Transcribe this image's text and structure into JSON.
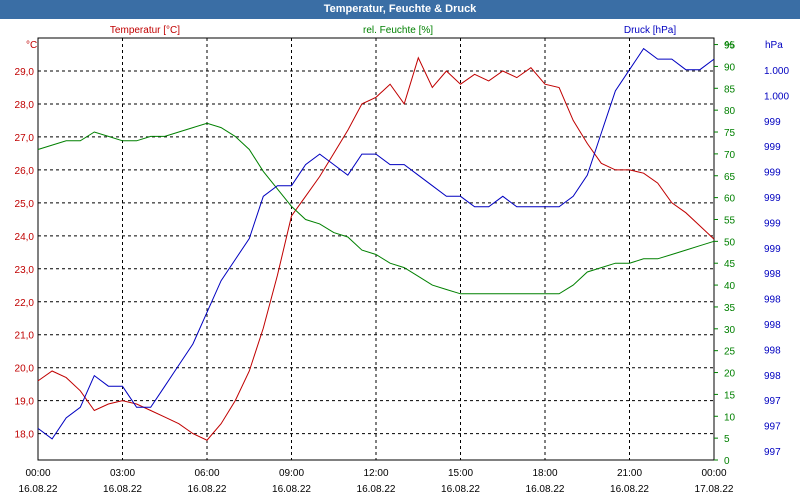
{
  "window": {
    "title": "Temperatur, Feuchte & Druck"
  },
  "colors": {
    "temperature": "#c00000",
    "humidity": "#008000",
    "pressure": "#0000c0",
    "grid": "#000000",
    "titlebar": "#3a6ea5"
  },
  "chart_data": {
    "type": "line",
    "grid": true,
    "title": "Temperatur, Feuchte & Druck",
    "x_tick_labels": [
      {
        "time": "00:00",
        "date": "16.08.22"
      },
      {
        "time": "03:00",
        "date": "16.08.22"
      },
      {
        "time": "06:00",
        "date": "16.08.22"
      },
      {
        "time": "09:00",
        "date": "16.08.22"
      },
      {
        "time": "12:00",
        "date": "16.08.22"
      },
      {
        "time": "15:00",
        "date": "16.08.22"
      },
      {
        "time": "18:00",
        "date": "16.08.22"
      },
      {
        "time": "21:00",
        "date": "16.08.22"
      },
      {
        "time": "00:00",
        "date": "17.08.22"
      }
    ],
    "xlim_hours": [
      0,
      24
    ],
    "axes": {
      "temperature": {
        "label": "Temperatur [°C]",
        "unit": "°C",
        "ylim": [
          17.2,
          30.0
        ],
        "ticks": [
          "18,0",
          "19,0",
          "20,0",
          "21,0",
          "22,0",
          "23,0",
          "24,0",
          "25,0",
          "26,0",
          "27,0",
          "28,0",
          "29,0"
        ]
      },
      "humidity": {
        "label": "rel. Feuchte [%]",
        "unit": "%",
        "ylim": [
          0,
          96.5
        ],
        "ticks": [
          "0",
          "5",
          "10",
          "15",
          "20",
          "25",
          "30",
          "35",
          "40",
          "45",
          "50",
          "55",
          "60",
          "65",
          "70",
          "75",
          "80",
          "85",
          "90",
          "95"
        ]
      },
      "pressure": {
        "label": "Druck [hPa]",
        "unit": "hPa",
        "ylim": [
          996.7,
          1000.7
        ],
        "ticks": [
          "997",
          "997",
          "997",
          "998",
          "998",
          "998",
          "998",
          "998",
          "999",
          "999",
          "999",
          "999",
          "999",
          "999",
          "1.000",
          "1.000"
        ]
      }
    },
    "series": [
      {
        "name": "Temperatur [°C]",
        "axis": "temperature",
        "x": [
          0,
          0.5,
          1,
          1.5,
          2,
          2.5,
          3,
          3.5,
          4,
          4.5,
          5,
          5.5,
          6,
          6.5,
          7,
          7.5,
          8,
          8.5,
          9,
          9.5,
          10,
          10.5,
          11,
          11.5,
          12,
          12.5,
          13,
          13.5,
          14,
          14.5,
          15,
          15.5,
          16,
          16.5,
          17,
          17.5,
          18,
          18.5,
          19,
          19.5,
          20,
          20.5,
          21,
          21.5,
          22,
          22.5,
          23,
          23.5,
          24
        ],
        "values": [
          19.6,
          19.9,
          19.7,
          19.3,
          18.7,
          18.9,
          19.0,
          18.9,
          18.7,
          18.5,
          18.3,
          18.0,
          17.8,
          18.3,
          19.0,
          19.9,
          21.2,
          22.8,
          24.6,
          25.2,
          25.8,
          26.5,
          27.2,
          28.0,
          28.2,
          28.6,
          28.0,
          29.4,
          28.5,
          29.0,
          28.6,
          28.9,
          28.7,
          29.0,
          28.8,
          29.1,
          28.6,
          28.5,
          27.5,
          26.8,
          26.2,
          26.0,
          26.0,
          25.9,
          25.6,
          25.0,
          24.7,
          24.3,
          23.9
        ]
      },
      {
        "name": "rel. Feuchte [%]",
        "axis": "humidity",
        "x": [
          0,
          0.5,
          1,
          1.5,
          2,
          2.5,
          3,
          3.5,
          4,
          4.5,
          5,
          5.5,
          6,
          6.5,
          7,
          7.5,
          8,
          8.5,
          9,
          9.5,
          10,
          10.5,
          11,
          11.5,
          12,
          12.5,
          13,
          13.5,
          14,
          14.5,
          15,
          15.5,
          16,
          16.5,
          17,
          17.5,
          18,
          18.5,
          19,
          19.5,
          20,
          20.5,
          21,
          21.5,
          22,
          22.5,
          23,
          23.5,
          24
        ],
        "values": [
          71,
          72,
          73,
          73,
          75,
          74,
          73,
          73,
          74,
          74,
          75,
          76,
          77,
          76,
          74,
          71,
          66,
          62,
          58,
          55,
          54,
          52,
          51,
          48,
          47,
          45,
          44,
          42,
          40,
          39,
          38,
          38,
          38,
          38,
          38,
          38,
          38,
          38,
          40,
          43,
          44,
          45,
          45,
          46,
          46,
          47,
          48,
          49,
          50
        ]
      },
      {
        "name": "Druck [hPa]",
        "axis": "pressure",
        "x": [
          0,
          0.5,
          1,
          1.5,
          2,
          2.5,
          3,
          3.5,
          4,
          4.5,
          5,
          5.5,
          6,
          6.5,
          7,
          7.5,
          8,
          8.5,
          9,
          9.5,
          10,
          10.5,
          11,
          11.5,
          12,
          12.5,
          13,
          13.5,
          14,
          14.5,
          15,
          15.5,
          16,
          16.5,
          17,
          17.5,
          18,
          18.5,
          19,
          19.5,
          20,
          20.5,
          21,
          21.5,
          22,
          22.5,
          23,
          23.5,
          24
        ],
        "values": [
          997.0,
          996.9,
          997.1,
          997.2,
          997.5,
          997.4,
          997.4,
          997.2,
          997.2,
          997.4,
          997.6,
          997.8,
          998.1,
          998.4,
          998.6,
          998.8,
          999.2,
          999.3,
          999.3,
          999.5,
          999.6,
          999.5,
          999.4,
          999.6,
          999.6,
          999.5,
          999.5,
          999.4,
          999.3,
          999.2,
          999.2,
          999.1,
          999.1,
          999.2,
          999.1,
          999.1,
          999.1,
          999.1,
          999.2,
          999.4,
          999.8,
          1000.2,
          1000.4,
          1000.6,
          1000.5,
          1000.5,
          1000.4,
          1000.4,
          1000.5
        ]
      }
    ]
  }
}
